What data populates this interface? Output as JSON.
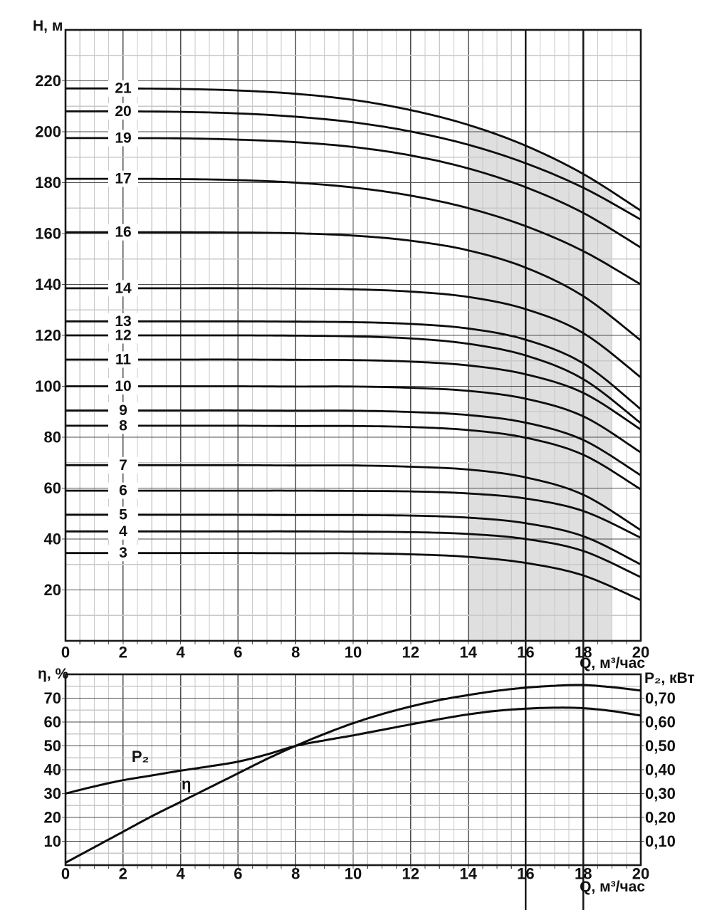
{
  "colors": {
    "background": "#ffffff",
    "curve": "#0d0d0d",
    "grid_major": "#4d4d4d",
    "grid_minor": "#c9c9c9",
    "border": "#1a1a1a",
    "marker_line": "#1a1a1a",
    "shaded_zone": "#dfdfdf",
    "text": "#111111"
  },
  "labels": {
    "h_axis": "H, м",
    "q_axis": "Q, м³/час",
    "eta_axis": "η, %",
    "p2_axis": "P₂, кВт"
  },
  "chart_data": [
    {
      "type": "line",
      "title": "Pump head curves H(Q) for different numbers of stages",
      "xlabel": "Q, м³/час",
      "ylabel": "H, м",
      "xlim": [
        0,
        20
      ],
      "ylim": [
        0,
        240
      ],
      "grid": "on",
      "x_ticks": [
        0,
        2,
        4,
        6,
        8,
        10,
        12,
        14,
        16,
        18,
        20
      ],
      "y_ticks": [
        20,
        40,
        60,
        80,
        100,
        120,
        140,
        160,
        180,
        200,
        220
      ],
      "x_minor_step": 0.5,
      "y_minor_step": 10,
      "marker_lines_x": [
        16,
        18
      ],
      "shaded_region": {
        "q_start": 14,
        "q_end": 19,
        "bounded_above_by_series": "21"
      },
      "q": [
        0,
        2,
        4,
        6,
        8,
        10,
        12,
        14,
        16,
        18,
        20
      ],
      "series": [
        {
          "name": "21",
          "h": [
            217,
            217,
            216.8,
            216.2,
            214.9,
            212.5,
            208.5,
            202.7,
            194.5,
            183.4,
            169
          ]
        },
        {
          "name": "20",
          "h": [
            208,
            208,
            207.8,
            207.2,
            205.9,
            203.7,
            200.1,
            194.9,
            187.6,
            178,
            165.5
          ]
        },
        {
          "name": "19",
          "h": [
            197.5,
            197.5,
            197.4,
            196.9,
            195.9,
            194,
            190.7,
            185.6,
            178.2,
            168.1,
            154.5
          ]
        },
        {
          "name": "17",
          "h": [
            181.5,
            181.5,
            181.4,
            181,
            180,
            178.1,
            174.9,
            170,
            162.9,
            153.1,
            140
          ]
        },
        {
          "name": "16",
          "h": [
            160.5,
            160.5,
            160.5,
            160.4,
            160.1,
            159.2,
            157.2,
            153.4,
            146.6,
            135.4,
            118
          ]
        },
        {
          "name": "14",
          "h": [
            138.5,
            138.5,
            138.5,
            138.5,
            138.4,
            138.1,
            137.2,
            135.1,
            130.3,
            120.9,
            103.5
          ]
        },
        {
          "name": "13",
          "h": [
            125.5,
            125.5,
            125.5,
            125.5,
            125.4,
            125.2,
            124.5,
            122.7,
            118.3,
            109,
            91
          ]
        },
        {
          "name": "12",
          "h": [
            120,
            120,
            120,
            120,
            119.9,
            119.6,
            118.8,
            116.7,
            112.1,
            102.8,
            85.5
          ]
        },
        {
          "name": "11",
          "h": [
            110.5,
            110.5,
            110.5,
            110.5,
            110.4,
            110.3,
            109.7,
            108.2,
            104.7,
            97.4,
            83
          ]
        },
        {
          "name": "10",
          "h": [
            100,
            100,
            100,
            100,
            99.9,
            99.9,
            99.4,
            98.2,
            95.1,
            88.2,
            74
          ]
        },
        {
          "name": "9",
          "h": [
            90.5,
            90.5,
            90.5,
            90.5,
            90.4,
            90.4,
            89.9,
            88.7,
            85.7,
            78.9,
            65
          ]
        },
        {
          "name": "8",
          "h": [
            84.5,
            84.5,
            84.5,
            84.5,
            84.4,
            84.4,
            84,
            82.8,
            79.8,
            73.1,
            59.5
          ]
        },
        {
          "name": "7",
          "h": [
            69,
            69,
            69,
            69,
            68.9,
            68.9,
            68.4,
            67.3,
            64.2,
            57.4,
            43.5
          ]
        },
        {
          "name": "6",
          "h": [
            59,
            59,
            59,
            59,
            59,
            58.9,
            58.7,
            57.9,
            55.9,
            51,
            40.5
          ]
        },
        {
          "name": "5",
          "h": [
            49.5,
            49.5,
            49.5,
            49.5,
            49.4,
            49.4,
            49.2,
            48.4,
            46.2,
            41.1,
            30
          ]
        },
        {
          "name": "4",
          "h": [
            43,
            43,
            43,
            43,
            43,
            42.9,
            42.7,
            42,
            40,
            35.3,
            25
          ]
        },
        {
          "name": "3",
          "h": [
            34.5,
            34.5,
            34.5,
            34.5,
            34.4,
            34.4,
            34,
            33,
            30.6,
            25.7,
            16
          ]
        }
      ]
    },
    {
      "type": "line",
      "title": "Efficiency and shaft power curves",
      "xlabel": "Q, м³/час",
      "ylabel": "η, %",
      "y2label": "P₂, кВт",
      "xlim": [
        0,
        20
      ],
      "ylim": [
        0,
        80
      ],
      "y2lim": [
        0,
        0.8
      ],
      "grid": "on",
      "x_ticks": [
        0,
        2,
        4,
        6,
        8,
        10,
        12,
        14,
        16,
        18,
        20
      ],
      "y_ticks": [
        10,
        20,
        30,
        40,
        50,
        60,
        70
      ],
      "y2_ticks": [
        "0,10",
        "0,20",
        "0,30",
        "0,40",
        "0,50",
        "0,60",
        "0,70"
      ],
      "x": [
        0,
        1,
        2,
        3,
        4,
        5,
        6,
        7,
        8,
        9,
        10,
        11,
        12,
        13,
        14,
        15,
        16,
        17,
        18,
        19,
        20
      ],
      "series": [
        {
          "name": "η",
          "axis": "left",
          "unit": "%",
          "values": [
            1,
            7.5,
            14,
            20.5,
            26.5,
            32.5,
            38.5,
            44.5,
            50,
            55,
            59.5,
            63.3,
            66.5,
            69.2,
            71.3,
            73.1,
            74.4,
            75.2,
            75.5,
            74.6,
            73.2
          ]
        },
        {
          "name": "P₂",
          "axis": "right",
          "unit": "кВт",
          "values": [
            0.3,
            0.33,
            0.356,
            0.376,
            0.396,
            0.414,
            0.434,
            0.464,
            0.5,
            0.523,
            0.544,
            0.567,
            0.59,
            0.612,
            0.632,
            0.647,
            0.656,
            0.66,
            0.658,
            0.646,
            0.627
          ]
        }
      ],
      "curve_labels": [
        {
          "text": "P₂",
          "q": 2.6,
          "v": 45.5
        },
        {
          "text": "η",
          "q": 4.2,
          "v": 34
        }
      ]
    }
  ]
}
